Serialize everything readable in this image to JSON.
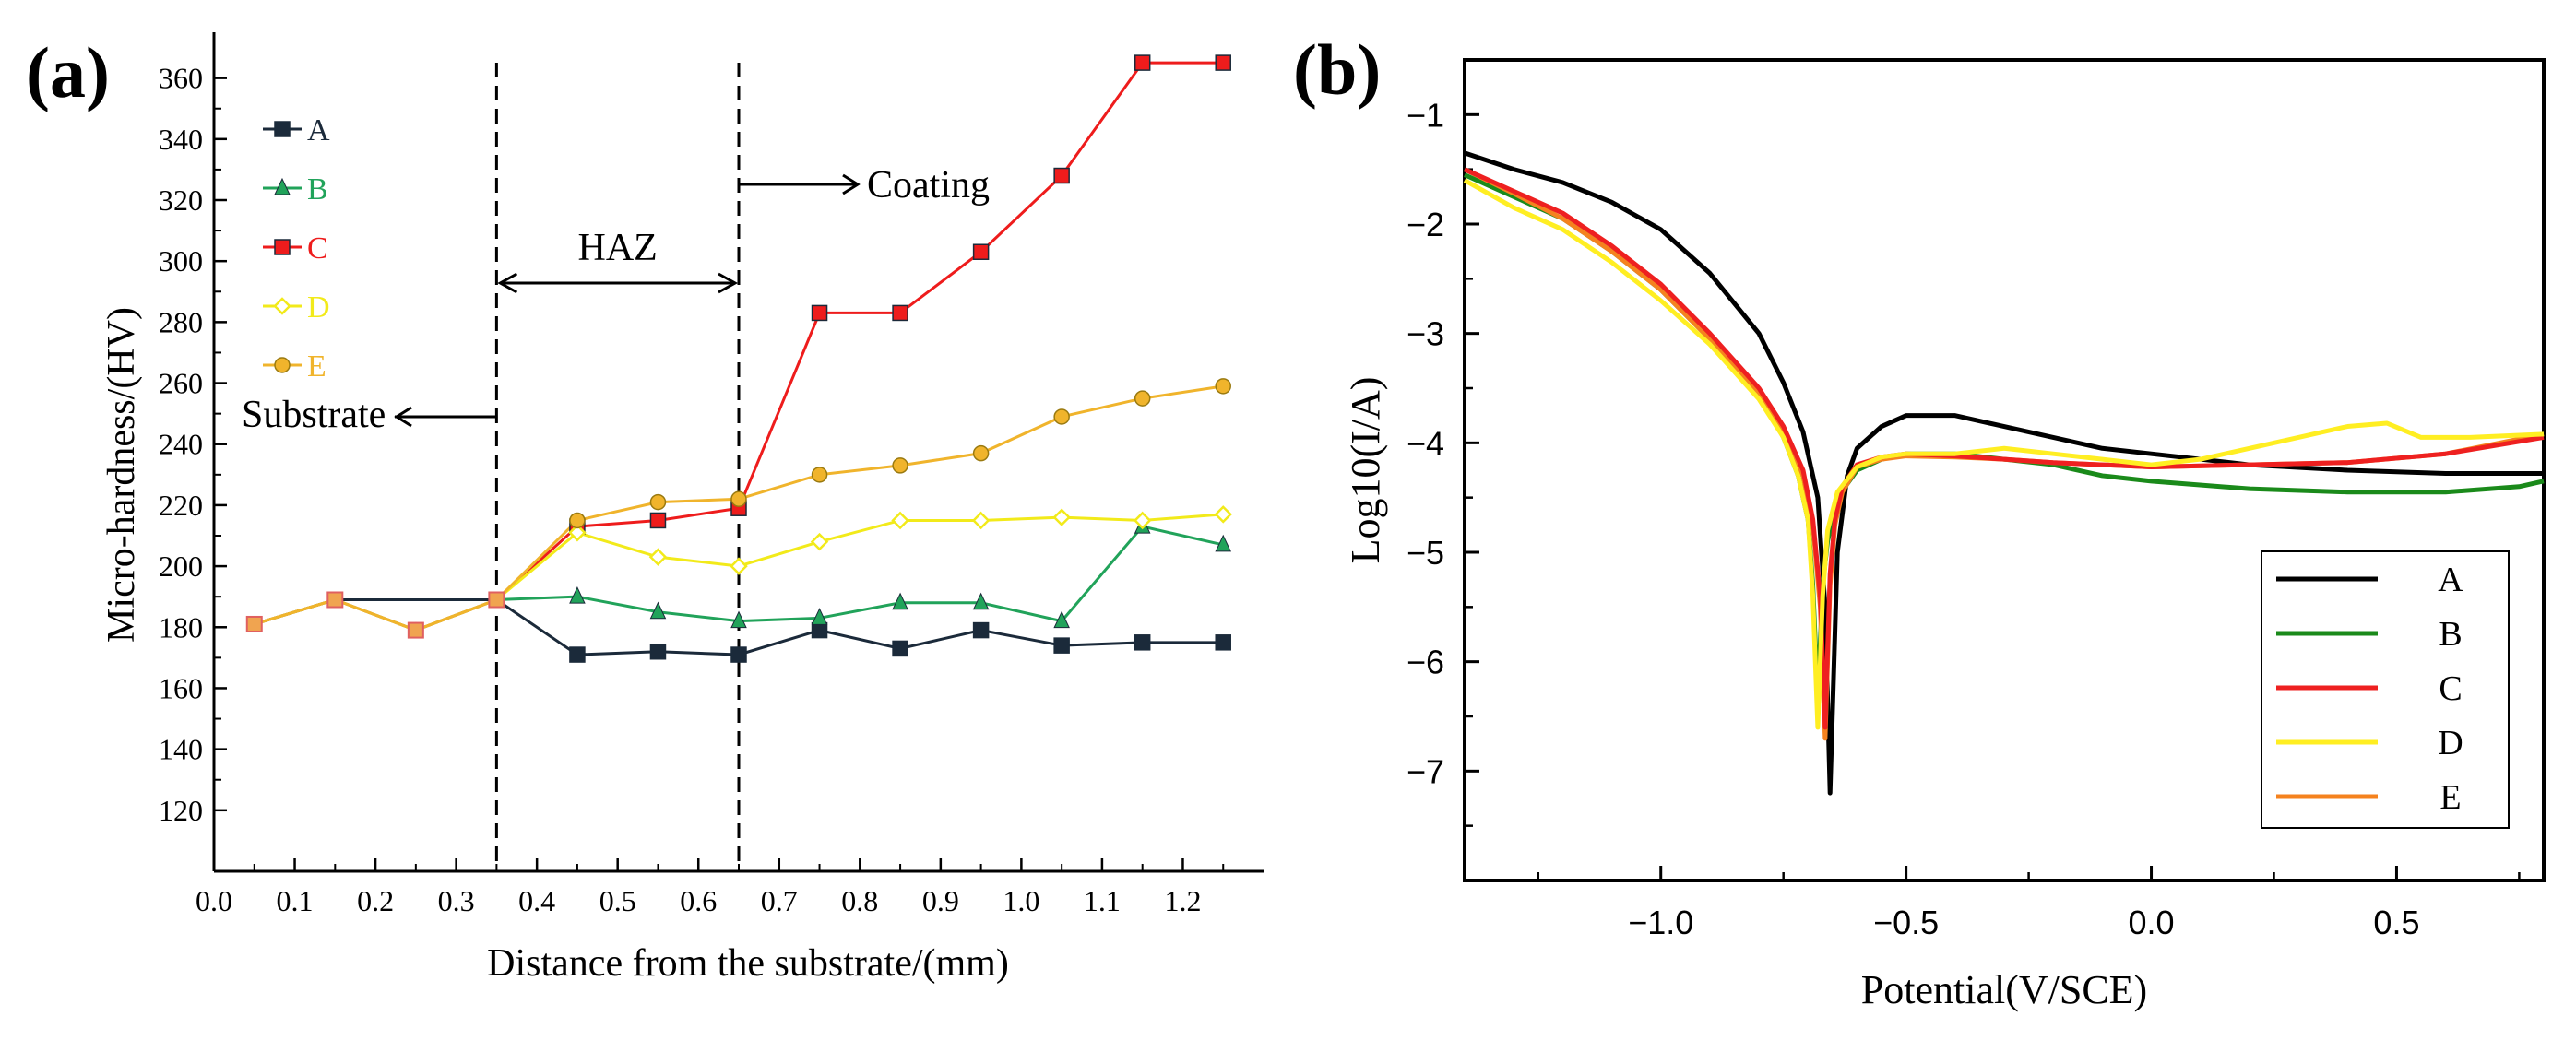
{
  "chart_data": [
    {
      "panel_label": "(a)",
      "type": "line",
      "xlabel": "Distance from the substrate/(mm)",
      "ylabel": "Micro-hardness/(HV)",
      "xlim": [
        0.0,
        1.3
      ],
      "ylim": [
        100,
        375
      ],
      "x_ticks": [
        0.0,
        0.1,
        0.2,
        0.3,
        0.4,
        0.5,
        0.6,
        0.7,
        0.8,
        0.9,
        1.0,
        1.1,
        1.2
      ],
      "x_tick_labels": [
        "0.0",
        "0.1",
        "0.2",
        "0.3",
        "0.4",
        "0.5",
        "0.6",
        "0.7",
        "0.8",
        "0.9",
        "1.0",
        "1.1",
        "1.2"
      ],
      "y_ticks": [
        120,
        140,
        160,
        180,
        200,
        220,
        240,
        260,
        280,
        300,
        320,
        340,
        360
      ],
      "y_tick_labels": [
        "120",
        "140",
        "160",
        "180",
        "200",
        "220",
        "240",
        "260",
        "280",
        "300",
        "320",
        "340",
        "360"
      ],
      "x": [
        0.05,
        0.15,
        0.25,
        0.35,
        0.45,
        0.55,
        0.65,
        0.75,
        0.85,
        0.95,
        1.05,
        1.15,
        1.25
      ],
      "series": [
        {
          "name": "A",
          "color": "#1b2a3a",
          "marker": "square",
          "values": [
            181,
            189,
            189,
            189,
            171,
            172,
            171,
            179,
            173,
            179,
            174,
            175,
            175
          ]
        },
        {
          "name": "B",
          "color": "#21a35a",
          "marker": "triangle",
          "values": [
            181,
            189,
            179,
            189,
            190,
            185,
            182,
            183,
            188,
            188,
            182,
            213,
            207
          ]
        },
        {
          "name": "C",
          "color": "#ee1c1c",
          "marker": "square",
          "values": [
            181,
            189,
            179,
            189,
            213,
            215,
            219,
            283,
            283,
            303,
            328,
            365,
            365
          ]
        },
        {
          "name": "D",
          "color": "#f2ea1a",
          "marker": "diamond",
          "values": [
            181,
            189,
            179,
            189,
            211,
            203,
            200,
            208,
            215,
            215,
            216,
            215,
            217
          ]
        },
        {
          "name": "E",
          "color": "#f0b42c",
          "marker": "circle",
          "values": [
            181,
            189,
            179,
            189,
            215,
            221,
            222,
            230,
            233,
            237,
            249,
            255,
            259
          ]
        }
      ],
      "legend_position": "top-left",
      "annotations": {
        "haz": "HAZ",
        "coating": "Coating",
        "substrate": "Substrate",
        "boundaries": [
          0.35,
          0.65
        ]
      }
    },
    {
      "panel_label": "(b)",
      "type": "line",
      "xlabel": "Potential(V/SCE)",
      "ylabel": "Log10(I/A)",
      "xlim": [
        -1.4,
        0.8
      ],
      "ylim": [
        -8.0,
        -0.5
      ],
      "x_ticks": [
        -1.0,
        -0.5,
        0.0,
        0.5
      ],
      "x_tick_labels": [
        "−1.0",
        "−0.5",
        "0.0",
        "0.5"
      ],
      "y_ticks": [
        -1,
        -2,
        -3,
        -4,
        -5,
        -6,
        -7
      ],
      "y_tick_labels": [
        "−1",
        "−2",
        "−3",
        "−4",
        "−5",
        "−6",
        "−7"
      ],
      "legend_position": "bottom-right",
      "series": [
        {
          "name": "A",
          "color": "#000000",
          "x": [
            -1.4,
            -1.3,
            -1.2,
            -1.1,
            -1.0,
            -0.9,
            -0.8,
            -0.75,
            -0.71,
            -0.68,
            -0.665,
            -0.655,
            -0.64,
            -0.62,
            -0.6,
            -0.55,
            -0.5,
            -0.4,
            -0.3,
            -0.2,
            -0.1,
            0.0,
            0.2,
            0.4,
            0.6,
            0.8
          ],
          "y": [
            -1.35,
            -1.5,
            -1.62,
            -1.8,
            -2.05,
            -2.45,
            -3.0,
            -3.45,
            -3.9,
            -4.5,
            -5.5,
            -7.2,
            -5.0,
            -4.3,
            -4.05,
            -3.85,
            -3.75,
            -3.75,
            -3.85,
            -3.95,
            -4.05,
            -4.1,
            -4.2,
            -4.25,
            -4.28,
            -4.28
          ]
        },
        {
          "name": "B",
          "color": "#1a8a1a",
          "x": [
            -1.4,
            -1.3,
            -1.2,
            -1.1,
            -1.0,
            -0.9,
            -0.8,
            -0.75,
            -0.72,
            -0.7,
            -0.69,
            -0.68,
            -0.67,
            -0.66,
            -0.64,
            -0.6,
            -0.55,
            -0.5,
            -0.4,
            -0.3,
            -0.2,
            -0.1,
            0.0,
            0.2,
            0.4,
            0.6,
            0.75,
            0.8
          ],
          "y": [
            -1.55,
            -1.75,
            -1.95,
            -2.25,
            -2.6,
            -3.05,
            -3.55,
            -3.95,
            -4.3,
            -4.7,
            -5.3,
            -6.35,
            -5.3,
            -4.9,
            -4.5,
            -4.25,
            -4.15,
            -4.1,
            -4.1,
            -4.15,
            -4.2,
            -4.3,
            -4.35,
            -4.42,
            -4.45,
            -4.45,
            -4.4,
            -4.35
          ]
        },
        {
          "name": "C",
          "color": "#ee2020",
          "x": [
            -1.4,
            -1.3,
            -1.2,
            -1.1,
            -1.0,
            -0.9,
            -0.8,
            -0.75,
            -0.71,
            -0.69,
            -0.675,
            -0.665,
            -0.655,
            -0.645,
            -0.63,
            -0.6,
            -0.55,
            -0.5,
            -0.4,
            -0.3,
            -0.2,
            -0.1,
            0.0,
            0.2,
            0.4,
            0.6,
            0.8
          ],
          "y": [
            -1.5,
            -1.7,
            -1.9,
            -2.2,
            -2.55,
            -3.0,
            -3.5,
            -3.85,
            -4.25,
            -4.7,
            -5.4,
            -6.6,
            -5.2,
            -4.7,
            -4.4,
            -4.2,
            -4.13,
            -4.1,
            -4.12,
            -4.15,
            -4.18,
            -4.2,
            -4.22,
            -4.2,
            -4.18,
            -4.1,
            -3.95
          ]
        },
        {
          "name": "D",
          "color": "#ffee22",
          "x": [
            -1.4,
            -1.3,
            -1.2,
            -1.1,
            -1.0,
            -0.9,
            -0.8,
            -0.75,
            -0.72,
            -0.7,
            -0.69,
            -0.68,
            -0.67,
            -0.66,
            -0.64,
            -0.6,
            -0.55,
            -0.5,
            -0.4,
            -0.3,
            -0.2,
            -0.1,
            0.0,
            0.1,
            0.2,
            0.3,
            0.4,
            0.48,
            0.55,
            0.65,
            0.8
          ],
          "y": [
            -1.6,
            -1.85,
            -2.05,
            -2.35,
            -2.7,
            -3.1,
            -3.6,
            -3.95,
            -4.3,
            -4.7,
            -5.4,
            -6.6,
            -5.4,
            -4.8,
            -4.45,
            -4.22,
            -4.13,
            -4.1,
            -4.1,
            -4.05,
            -4.1,
            -4.15,
            -4.2,
            -4.15,
            -4.05,
            -3.95,
            -3.85,
            -3.82,
            -3.95,
            -3.95,
            -3.92
          ]
        },
        {
          "name": "E",
          "color": "#f5821e",
          "x": [
            -1.4,
            -1.3,
            -1.2,
            -1.1,
            -1.0,
            -0.9,
            -0.8,
            -0.75,
            -0.71,
            -0.69,
            -0.675,
            -0.665,
            -0.655,
            -0.645,
            -0.63,
            -0.6,
            -0.55,
            -0.5,
            -0.4,
            -0.3,
            -0.2,
            -0.1,
            0.0,
            0.2,
            0.4,
            0.6,
            0.8
          ],
          "y": [
            -1.5,
            -1.72,
            -1.95,
            -2.25,
            -2.6,
            -3.05,
            -3.55,
            -3.9,
            -4.3,
            -4.75,
            -5.5,
            -6.7,
            -5.3,
            -4.75,
            -4.45,
            -4.22,
            -4.15,
            -4.12,
            -4.13,
            -4.15,
            -4.18,
            -4.2,
            -4.22,
            -4.2,
            -4.18,
            -4.1,
            -3.92
          ]
        }
      ]
    }
  ]
}
